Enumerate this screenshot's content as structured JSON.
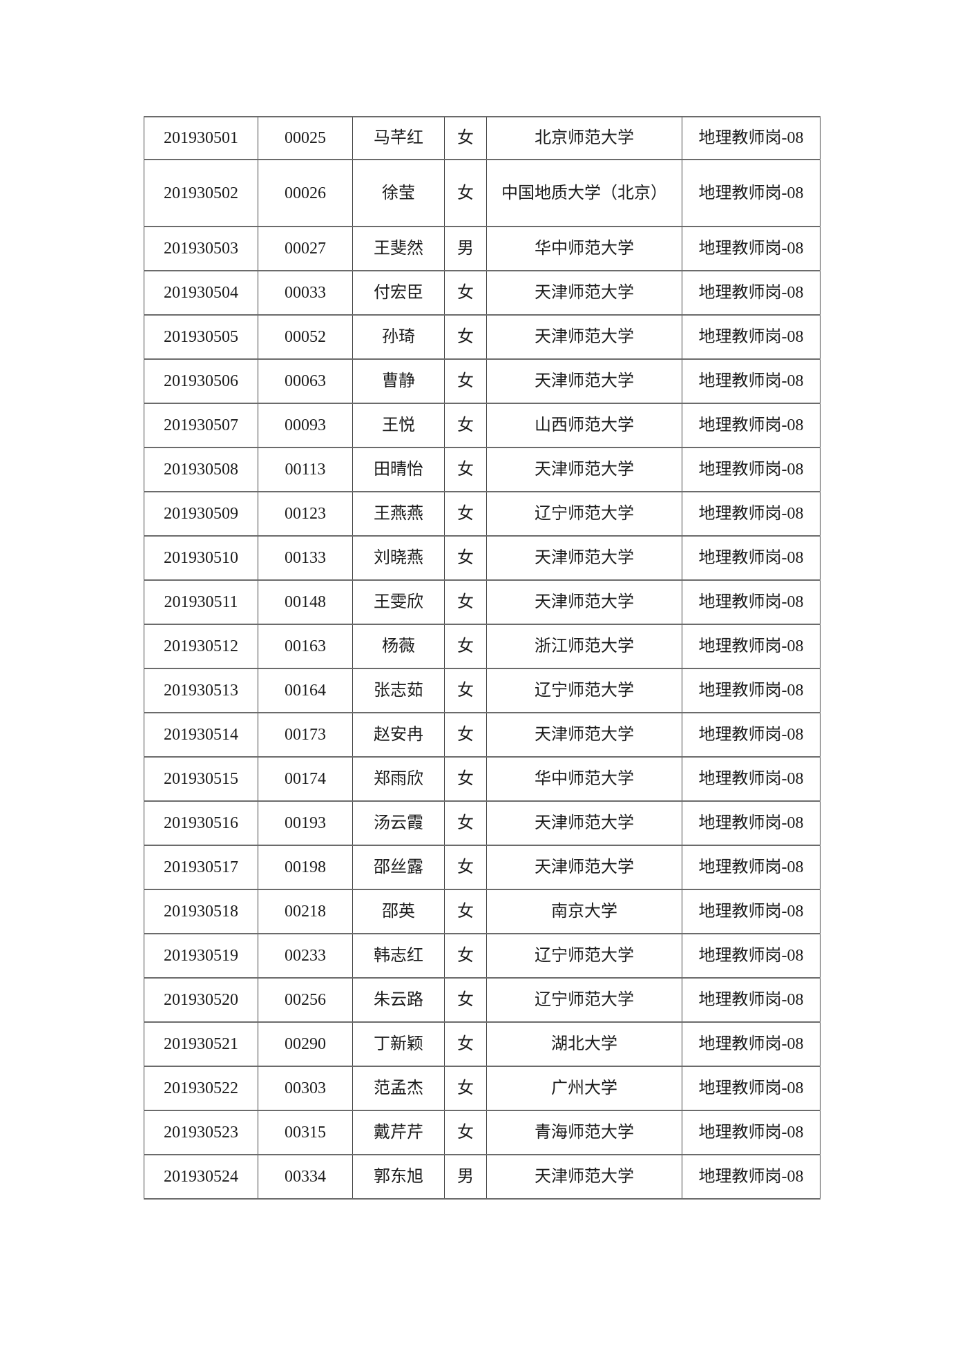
{
  "page": {
    "background_color": "#ffffff",
    "text_color": "#1c1c1c",
    "border_color": "#555555"
  },
  "table": {
    "rows": [
      [
        "201930501",
        "00025",
        "马芊红",
        "女",
        "北京师范大学",
        "地理教师岗-08"
      ],
      [
        "201930502",
        "00026",
        "徐莹",
        "女",
        "中国地质大学（北京）",
        "地理教师岗-08"
      ],
      [
        "201930503",
        "00027",
        "王斐然",
        "男",
        "华中师范大学",
        "地理教师岗-08"
      ],
      [
        "201930504",
        "00033",
        "付宏臣",
        "女",
        "天津师范大学",
        "地理教师岗-08"
      ],
      [
        "201930505",
        "00052",
        "孙琦",
        "女",
        "天津师范大学",
        "地理教师岗-08"
      ],
      [
        "201930506",
        "00063",
        "曹静",
        "女",
        "天津师范大学",
        "地理教师岗-08"
      ],
      [
        "201930507",
        "00093",
        "王悦",
        "女",
        "山西师范大学",
        "地理教师岗-08"
      ],
      [
        "201930508",
        "00113",
        "田晴怡",
        "女",
        "天津师范大学",
        "地理教师岗-08"
      ],
      [
        "201930509",
        "00123",
        "王燕燕",
        "女",
        "辽宁师范大学",
        "地理教师岗-08"
      ],
      [
        "201930510",
        "00133",
        "刘晓燕",
        "女",
        "天津师范大学",
        "地理教师岗-08"
      ],
      [
        "201930511",
        "00148",
        "王雯欣",
        "女",
        "天津师范大学",
        "地理教师岗-08"
      ],
      [
        "201930512",
        "00163",
        "杨薇",
        "女",
        "浙江师范大学",
        "地理教师岗-08"
      ],
      [
        "201930513",
        "00164",
        "张志茹",
        "女",
        "辽宁师范大学",
        "地理教师岗-08"
      ],
      [
        "201930514",
        "00173",
        "赵安冉",
        "女",
        "天津师范大学",
        "地理教师岗-08"
      ],
      [
        "201930515",
        "00174",
        "郑雨欣",
        "女",
        "华中师范大学",
        "地理教师岗-08"
      ],
      [
        "201930516",
        "00193",
        "汤云霞",
        "女",
        "天津师范大学",
        "地理教师岗-08"
      ],
      [
        "201930517",
        "00198",
        "邵丝露",
        "女",
        "天津师范大学",
        "地理教师岗-08"
      ],
      [
        "201930518",
        "00218",
        "邵英",
        "女",
        "南京大学",
        "地理教师岗-08"
      ],
      [
        "201930519",
        "00233",
        "韩志红",
        "女",
        "辽宁师范大学",
        "地理教师岗-08"
      ],
      [
        "201930520",
        "00256",
        "朱云路",
        "女",
        "辽宁师范大学",
        "地理教师岗-08"
      ],
      [
        "201930521",
        "00290",
        "丁新颖",
        "女",
        "湖北大学",
        "地理教师岗-08"
      ],
      [
        "201930522",
        "00303",
        "范孟杰",
        "女",
        "广州大学",
        "地理教师岗-08"
      ],
      [
        "201930523",
        "00315",
        "戴芹芹",
        "女",
        "青海师范大学",
        "地理教师岗-08"
      ],
      [
        "201930524",
        "00334",
        "郭东旭",
        "男",
        "天津师范大学",
        "地理教师岗-08"
      ]
    ]
  }
}
